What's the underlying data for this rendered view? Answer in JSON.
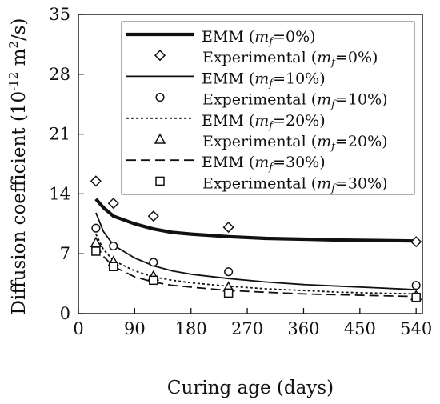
{
  "chart_data": {
    "type": "line",
    "xlabel": "Curing age (days)",
    "ylabel": "Diffusion coefficient (10",
    "ylabel_exp": "-12",
    "ylabel_unit": " m",
    "ylabel_exp2": "2",
    "ylabel_tail": "/s)",
    "xlim": [
      0,
      550
    ],
    "ylim": [
      0,
      35
    ],
    "xticks": [
      0,
      90,
      180,
      270,
      360,
      450,
      540
    ],
    "yticks": [
      0,
      7,
      14,
      21,
      28,
      35
    ],
    "grid": false,
    "legend_position": "top-right",
    "series": [
      {
        "name": "EMM (mf=0%)",
        "kind": "model",
        "style": "thick-solid",
        "x": [
          28,
          40,
          56,
          90,
          120,
          150,
          180,
          240,
          300,
          360,
          420,
          480,
          540
        ],
        "y": [
          13.4,
          12.4,
          11.4,
          10.5,
          9.9,
          9.5,
          9.3,
          9.0,
          8.8,
          8.7,
          8.6,
          8.55,
          8.5
        ]
      },
      {
        "name": "Experimental (mf=0%)",
        "kind": "experimental",
        "marker": "diamond",
        "x": [
          28,
          56,
          120,
          240,
          540
        ],
        "y": [
          15.5,
          12.9,
          11.4,
          10.1,
          8.4
        ]
      },
      {
        "name": "EMM (mf=10%)",
        "kind": "model",
        "style": "solid",
        "x": [
          28,
          40,
          56,
          90,
          120,
          150,
          180,
          240,
          300,
          360,
          420,
          480,
          540
        ],
        "y": [
          11.8,
          9.6,
          8.0,
          6.5,
          5.6,
          5.0,
          4.6,
          4.1,
          3.7,
          3.4,
          3.2,
          3.0,
          2.8
        ]
      },
      {
        "name": "Experimental (mf=10%)",
        "kind": "experimental",
        "marker": "circle",
        "x": [
          28,
          56,
          120,
          240,
          540
        ],
        "y": [
          10.0,
          7.9,
          6.0,
          4.9,
          3.3
        ]
      },
      {
        "name": "EMM (mf=20%)",
        "kind": "model",
        "style": "dotted",
        "x": [
          28,
          40,
          56,
          90,
          120,
          150,
          180,
          240,
          300,
          360,
          420,
          480,
          540
        ],
        "y": [
          9.3,
          7.5,
          6.2,
          5.0,
          4.3,
          3.9,
          3.6,
          3.2,
          2.9,
          2.7,
          2.5,
          2.4,
          2.3
        ]
      },
      {
        "name": "Experimental (mf=20%)",
        "kind": "experimental",
        "marker": "triangle",
        "x": [
          28,
          56,
          120,
          240,
          540
        ],
        "y": [
          8.3,
          6.1,
          4.4,
          3.1,
          2.1
        ]
      },
      {
        "name": "EMM (mf=30%)",
        "kind": "model",
        "style": "dashed",
        "x": [
          28,
          40,
          56,
          90,
          120,
          150,
          180,
          240,
          300,
          360,
          420,
          480,
          540
        ],
        "y": [
          8.1,
          6.7,
          5.5,
          4.3,
          3.7,
          3.3,
          3.1,
          2.7,
          2.5,
          2.3,
          2.2,
          2.1,
          2.0
        ]
      },
      {
        "name": "Experimental (mf=30%)",
        "kind": "experimental",
        "marker": "square",
        "x": [
          28,
          56,
          120,
          240,
          540
        ],
        "y": [
          7.3,
          5.5,
          3.9,
          2.4,
          1.9
        ]
      }
    ],
    "legend": [
      {
        "prefix": "EMM (",
        "var": "m",
        "sub": "f",
        "suffix": "=0%)",
        "kind": "line",
        "style": "thick-solid"
      },
      {
        "prefix": "Experimental (",
        "var": "m",
        "sub": "f",
        "suffix": "=0%)",
        "kind": "marker",
        "marker": "diamond"
      },
      {
        "prefix": "EMM (",
        "var": "m",
        "sub": "f",
        "suffix": "=10%)",
        "kind": "line",
        "style": "solid"
      },
      {
        "prefix": "Experimental (",
        "var": "m",
        "sub": "f",
        "suffix": "=10%)",
        "kind": "marker",
        "marker": "circle"
      },
      {
        "prefix": "EMM (",
        "var": "m",
        "sub": "f",
        "suffix": "=20%)",
        "kind": "line",
        "style": "dotted"
      },
      {
        "prefix": "Experimental (",
        "var": "m",
        "sub": "f",
        "suffix": "=20%)",
        "kind": "marker",
        "marker": "triangle"
      },
      {
        "prefix": "EMM (",
        "var": "m",
        "sub": "f",
        "suffix": "=30%)",
        "kind": "line",
        "style": "dashed"
      },
      {
        "prefix": "Experimental (",
        "var": "m",
        "sub": "f",
        "suffix": "=30%)",
        "kind": "marker",
        "marker": "square"
      }
    ]
  }
}
